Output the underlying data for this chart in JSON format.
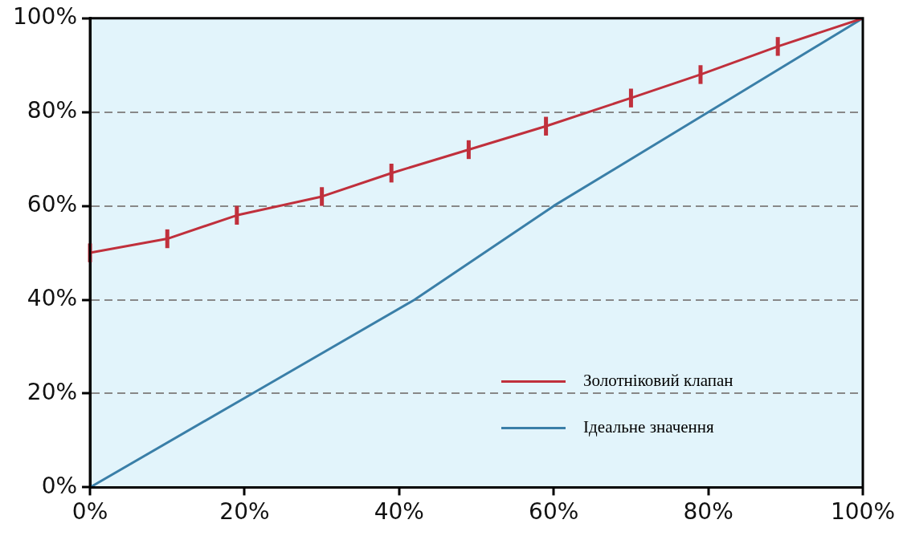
{
  "chart_data": {
    "type": "line",
    "xlim": [
      0,
      100
    ],
    "xticks": [
      {
        "value": 0,
        "label": "0%"
      },
      {
        "value": 20,
        "label": "20%"
      },
      {
        "value": 40,
        "label": "40%"
      },
      {
        "value": 60,
        "label": "60%"
      },
      {
        "value": 80,
        "label": "80%"
      },
      {
        "value": 100,
        "label": "100%"
      }
    ],
    "ylim": [
      0,
      100
    ],
    "yticks": [
      {
        "value": 0,
        "label": "0%"
      },
      {
        "value": 20,
        "label": "20%"
      },
      {
        "value": 40,
        "label": "40%"
      },
      {
        "value": 60,
        "label": "60%"
      },
      {
        "value": 80,
        "label": "80%"
      },
      {
        "value": 100,
        "label": "100%"
      }
    ],
    "series": [
      {
        "name": "Золотніковий клапан",
        "color": "#c0303c",
        "x": [
          0,
          10,
          19,
          30,
          39,
          49,
          59,
          70,
          79,
          89,
          100
        ],
        "values": [
          50,
          53,
          58,
          62,
          67,
          72,
          77,
          83,
          88,
          94,
          100
        ],
        "errors": [
          2,
          2,
          2,
          2,
          2,
          2,
          2,
          2,
          2,
          2,
          null
        ]
      },
      {
        "name": "Ідеальне значення",
        "color": "#3a7fa8",
        "x": [
          0,
          21,
          42,
          60,
          80,
          100
        ],
        "values": [
          0,
          20,
          40,
          60,
          80,
          100
        ]
      }
    ],
    "grid": "y",
    "legend": "bottom right",
    "marker": "none",
    "line_style": "solid"
  }
}
